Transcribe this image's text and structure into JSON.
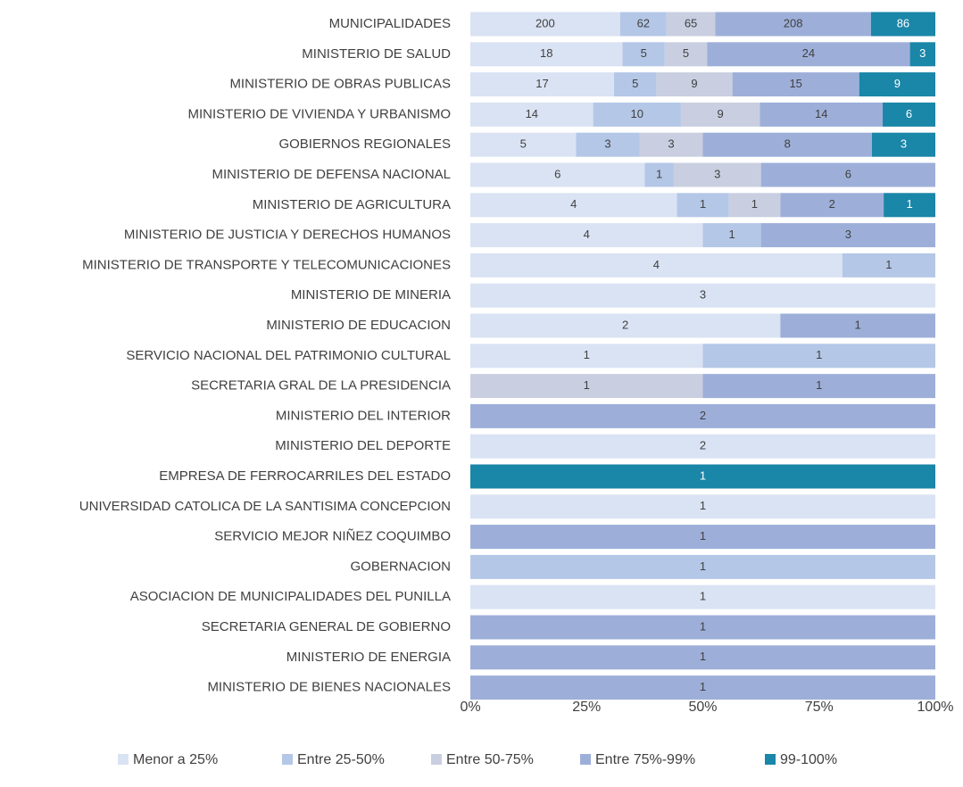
{
  "chart_data": {
    "type": "bar",
    "orientation": "horizontal",
    "stacking": "percent",
    "categories": [
      "MUNICIPALIDADES",
      "MINISTERIO DE SALUD",
      "MINISTERIO DE OBRAS PUBLICAS",
      "MINISTERIO DE VIVIENDA Y URBANISMO",
      "GOBIERNOS REGIONALES",
      "MINISTERIO DE DEFENSA NACIONAL",
      "MINISTERIO DE AGRICULTURA",
      "MINISTERIO DE JUSTICIA Y DERECHOS HUMANOS",
      "MINISTERIO DE TRANSPORTE Y TELECOMUNICACIONES",
      "MINISTERIO DE MINERIA",
      "MINISTERIO DE EDUCACION",
      "SERVICIO NACIONAL DEL PATRIMONIO CULTURAL",
      "SECRETARIA GRAL DE LA PRESIDENCIA",
      "MINISTERIO DEL INTERIOR",
      "MINISTERIO DEL DEPORTE",
      "EMPRESA DE FERROCARRILES DEL ESTADO",
      "UNIVERSIDAD CATOLICA DE LA SANTISIMA CONCEPCION",
      "SERVICIO MEJOR NIÑEZ COQUIMBO",
      "GOBERNACION",
      "ASOCIACION DE MUNICIPALIDADES DEL PUNILLA",
      "SECRETARIA GENERAL DE GOBIERNO",
      "MINISTERIO DE ENERGIA",
      "MINISTERIO DE BIENES NACIONALES"
    ],
    "series": [
      {
        "name": "Menor a 25%",
        "color": "#dae3f3",
        "values": [
          200,
          18,
          17,
          14,
          5,
          6,
          4,
          4,
          4,
          3,
          2,
          1,
          null,
          null,
          2,
          null,
          1,
          null,
          null,
          1,
          null,
          null,
          null
        ]
      },
      {
        "name": "Entre 25-50%",
        "color": "#b4c7e7",
        "values": [
          62,
          5,
          5,
          10,
          3,
          1,
          1,
          1,
          1,
          null,
          null,
          1,
          null,
          null,
          null,
          null,
          null,
          null,
          1,
          null,
          null,
          null,
          null
        ]
      },
      {
        "name": "Entre 50-75%",
        "color": "#c9cfe0",
        "values": [
          65,
          5,
          9,
          9,
          3,
          3,
          1,
          null,
          null,
          null,
          null,
          null,
          1,
          null,
          null,
          null,
          null,
          null,
          null,
          null,
          null,
          null,
          null
        ]
      },
      {
        "name": "Entre 75%-99%",
        "color": "#9dafd9",
        "values": [
          208,
          24,
          15,
          14,
          8,
          6,
          2,
          3,
          null,
          null,
          1,
          null,
          1,
          2,
          null,
          null,
          null,
          1,
          null,
          null,
          1,
          1,
          1
        ]
      },
      {
        "name": "99-100%",
        "color": "#1a86a8",
        "values": [
          86,
          3,
          9,
          6,
          3,
          null,
          1,
          null,
          null,
          null,
          null,
          null,
          null,
          null,
          null,
          1,
          null,
          null,
          null,
          null,
          null,
          null,
          null
        ]
      }
    ],
    "xlim": [
      0,
      100
    ],
    "xticks": [
      {
        "value": 0,
        "label": "0%"
      },
      {
        "value": 25,
        "label": "25%"
      },
      {
        "value": 50,
        "label": "50%"
      },
      {
        "value": 75,
        "label": "75%"
      },
      {
        "value": 100,
        "label": "100%"
      }
    ],
    "legend": "bottom"
  }
}
